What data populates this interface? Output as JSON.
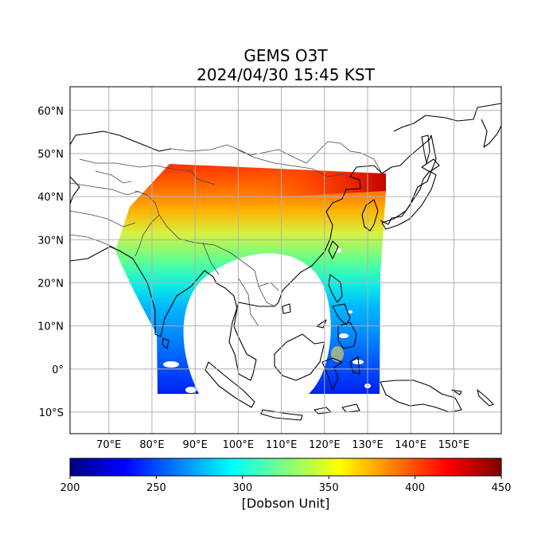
{
  "title": {
    "line1": "GEMS O3T",
    "line2": "2024/04/30 15:45 KST"
  },
  "map": {
    "lon_range": [
      61,
      161
    ],
    "lat_range": [
      -15,
      65.5
    ],
    "lon_ticks": [
      {
        "value": 70,
        "label": "70°E"
      },
      {
        "value": 80,
        "label": "80°E"
      },
      {
        "value": 90,
        "label": "90°E"
      },
      {
        "value": 100,
        "label": "100°E"
      },
      {
        "value": 110,
        "label": "110°E"
      },
      {
        "value": 120,
        "label": "120°E"
      },
      {
        "value": 130,
        "label": "130°E"
      },
      {
        "value": 140,
        "label": "140°E"
      },
      {
        "value": 150,
        "label": "150°E"
      }
    ],
    "lat_ticks": [
      {
        "value": 60,
        "label": "60°N"
      },
      {
        "value": 50,
        "label": "50°N"
      },
      {
        "value": 40,
        "label": "40°N"
      },
      {
        "value": 30,
        "label": "30°N"
      },
      {
        "value": 20,
        "label": "20°N"
      },
      {
        "value": 10,
        "label": "10°N"
      },
      {
        "value": 0,
        "label": "0°"
      },
      {
        "value": -10,
        "label": "10°S"
      }
    ],
    "grid": true,
    "colors": {
      "grid": "#b0b0b0",
      "coastline": "#000000",
      "border": "#444444"
    }
  },
  "colorbar": {
    "min": 200,
    "max": 450,
    "ticks": [
      200,
      250,
      300,
      350,
      400,
      450
    ],
    "label": "[Dobson Unit]",
    "colormap": [
      "#00007f",
      "#0000ff",
      "#007fff",
      "#00ffff",
      "#7fff7f",
      "#ffff00",
      "#ff7f00",
      "#ff0000",
      "#7f0000"
    ]
  }
}
